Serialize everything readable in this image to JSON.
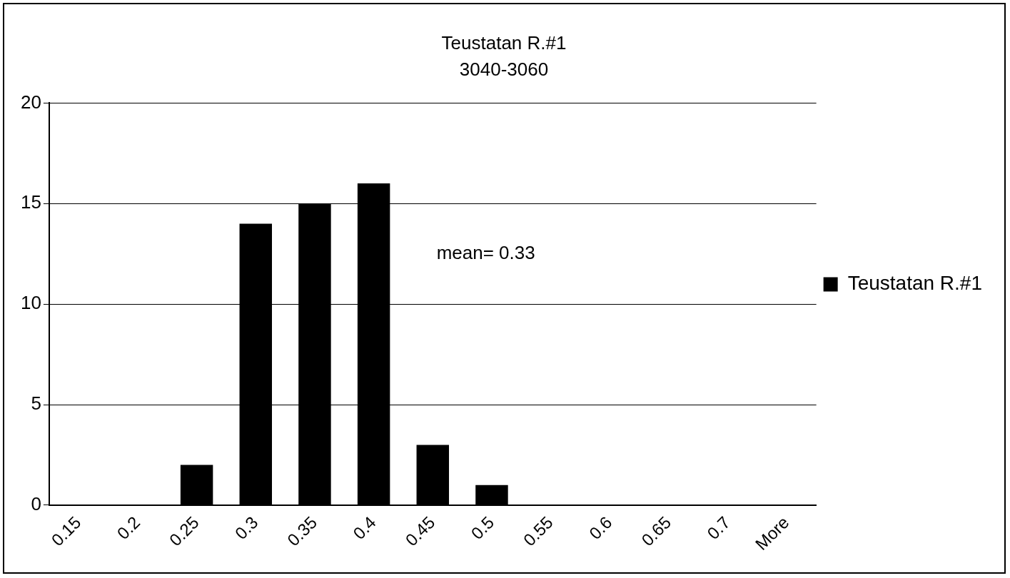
{
  "chart_data": {
    "type": "bar",
    "title": "Teustatan R.#1",
    "subtitle": "3040-3060",
    "categories": [
      "0.15",
      "0.2",
      "0.25",
      "0.3",
      "0.35",
      "0.4",
      "0.45",
      "0.5",
      "0.55",
      "0.6",
      "0.65",
      "0.7",
      "More"
    ],
    "series": [
      {
        "name": "Teustatan R.#1",
        "color": "#000000",
        "values": [
          0,
          0,
          2,
          14,
          15,
          16,
          3,
          1,
          0,
          0,
          0,
          0,
          0
        ]
      }
    ],
    "ylim": [
      0,
      20
    ],
    "yticks": [
      0,
      5,
      10,
      15,
      20
    ],
    "grid": "y",
    "legend": "right",
    "annotations": [
      "mean= 0.33"
    ]
  }
}
